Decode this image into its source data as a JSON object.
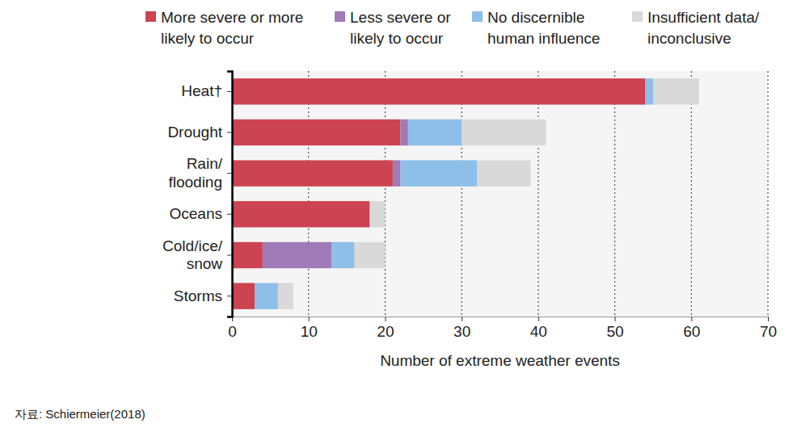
{
  "chart_data": {
    "type": "bar",
    "orientation": "horizontal",
    "stacked": true,
    "grid": true,
    "legend": "top",
    "categories": [
      "Heat†",
      "Drought",
      "Rain/\nflooding",
      "Oceans",
      "Cold/ice/\nsnow",
      "Storms"
    ],
    "series": [
      {
        "name": "More severe or more\nlikely to occur",
        "color": "#cc4452",
        "values": [
          54,
          22,
          21,
          18,
          4,
          3
        ]
      },
      {
        "name": "Less severe or\nlikely to occur",
        "color": "#a07bb7",
        "values": [
          0,
          1,
          1,
          0,
          9,
          0
        ]
      },
      {
        "name": "No discernible\nhuman influence",
        "color": "#8dbfe8",
        "values": [
          1,
          7,
          10,
          0,
          3,
          3
        ]
      },
      {
        "name": "Insufficient data/\ninconclusive",
        "color": "#d9d9d9",
        "values": [
          6,
          11,
          7,
          2,
          4,
          2
        ]
      }
    ],
    "xlabel": "Number of extreme weather events",
    "xlim": [
      0,
      70
    ],
    "xticks": [
      0,
      10,
      20,
      30,
      40,
      50,
      60,
      70
    ],
    "source": "자료: Schiermeier(2018)"
  }
}
